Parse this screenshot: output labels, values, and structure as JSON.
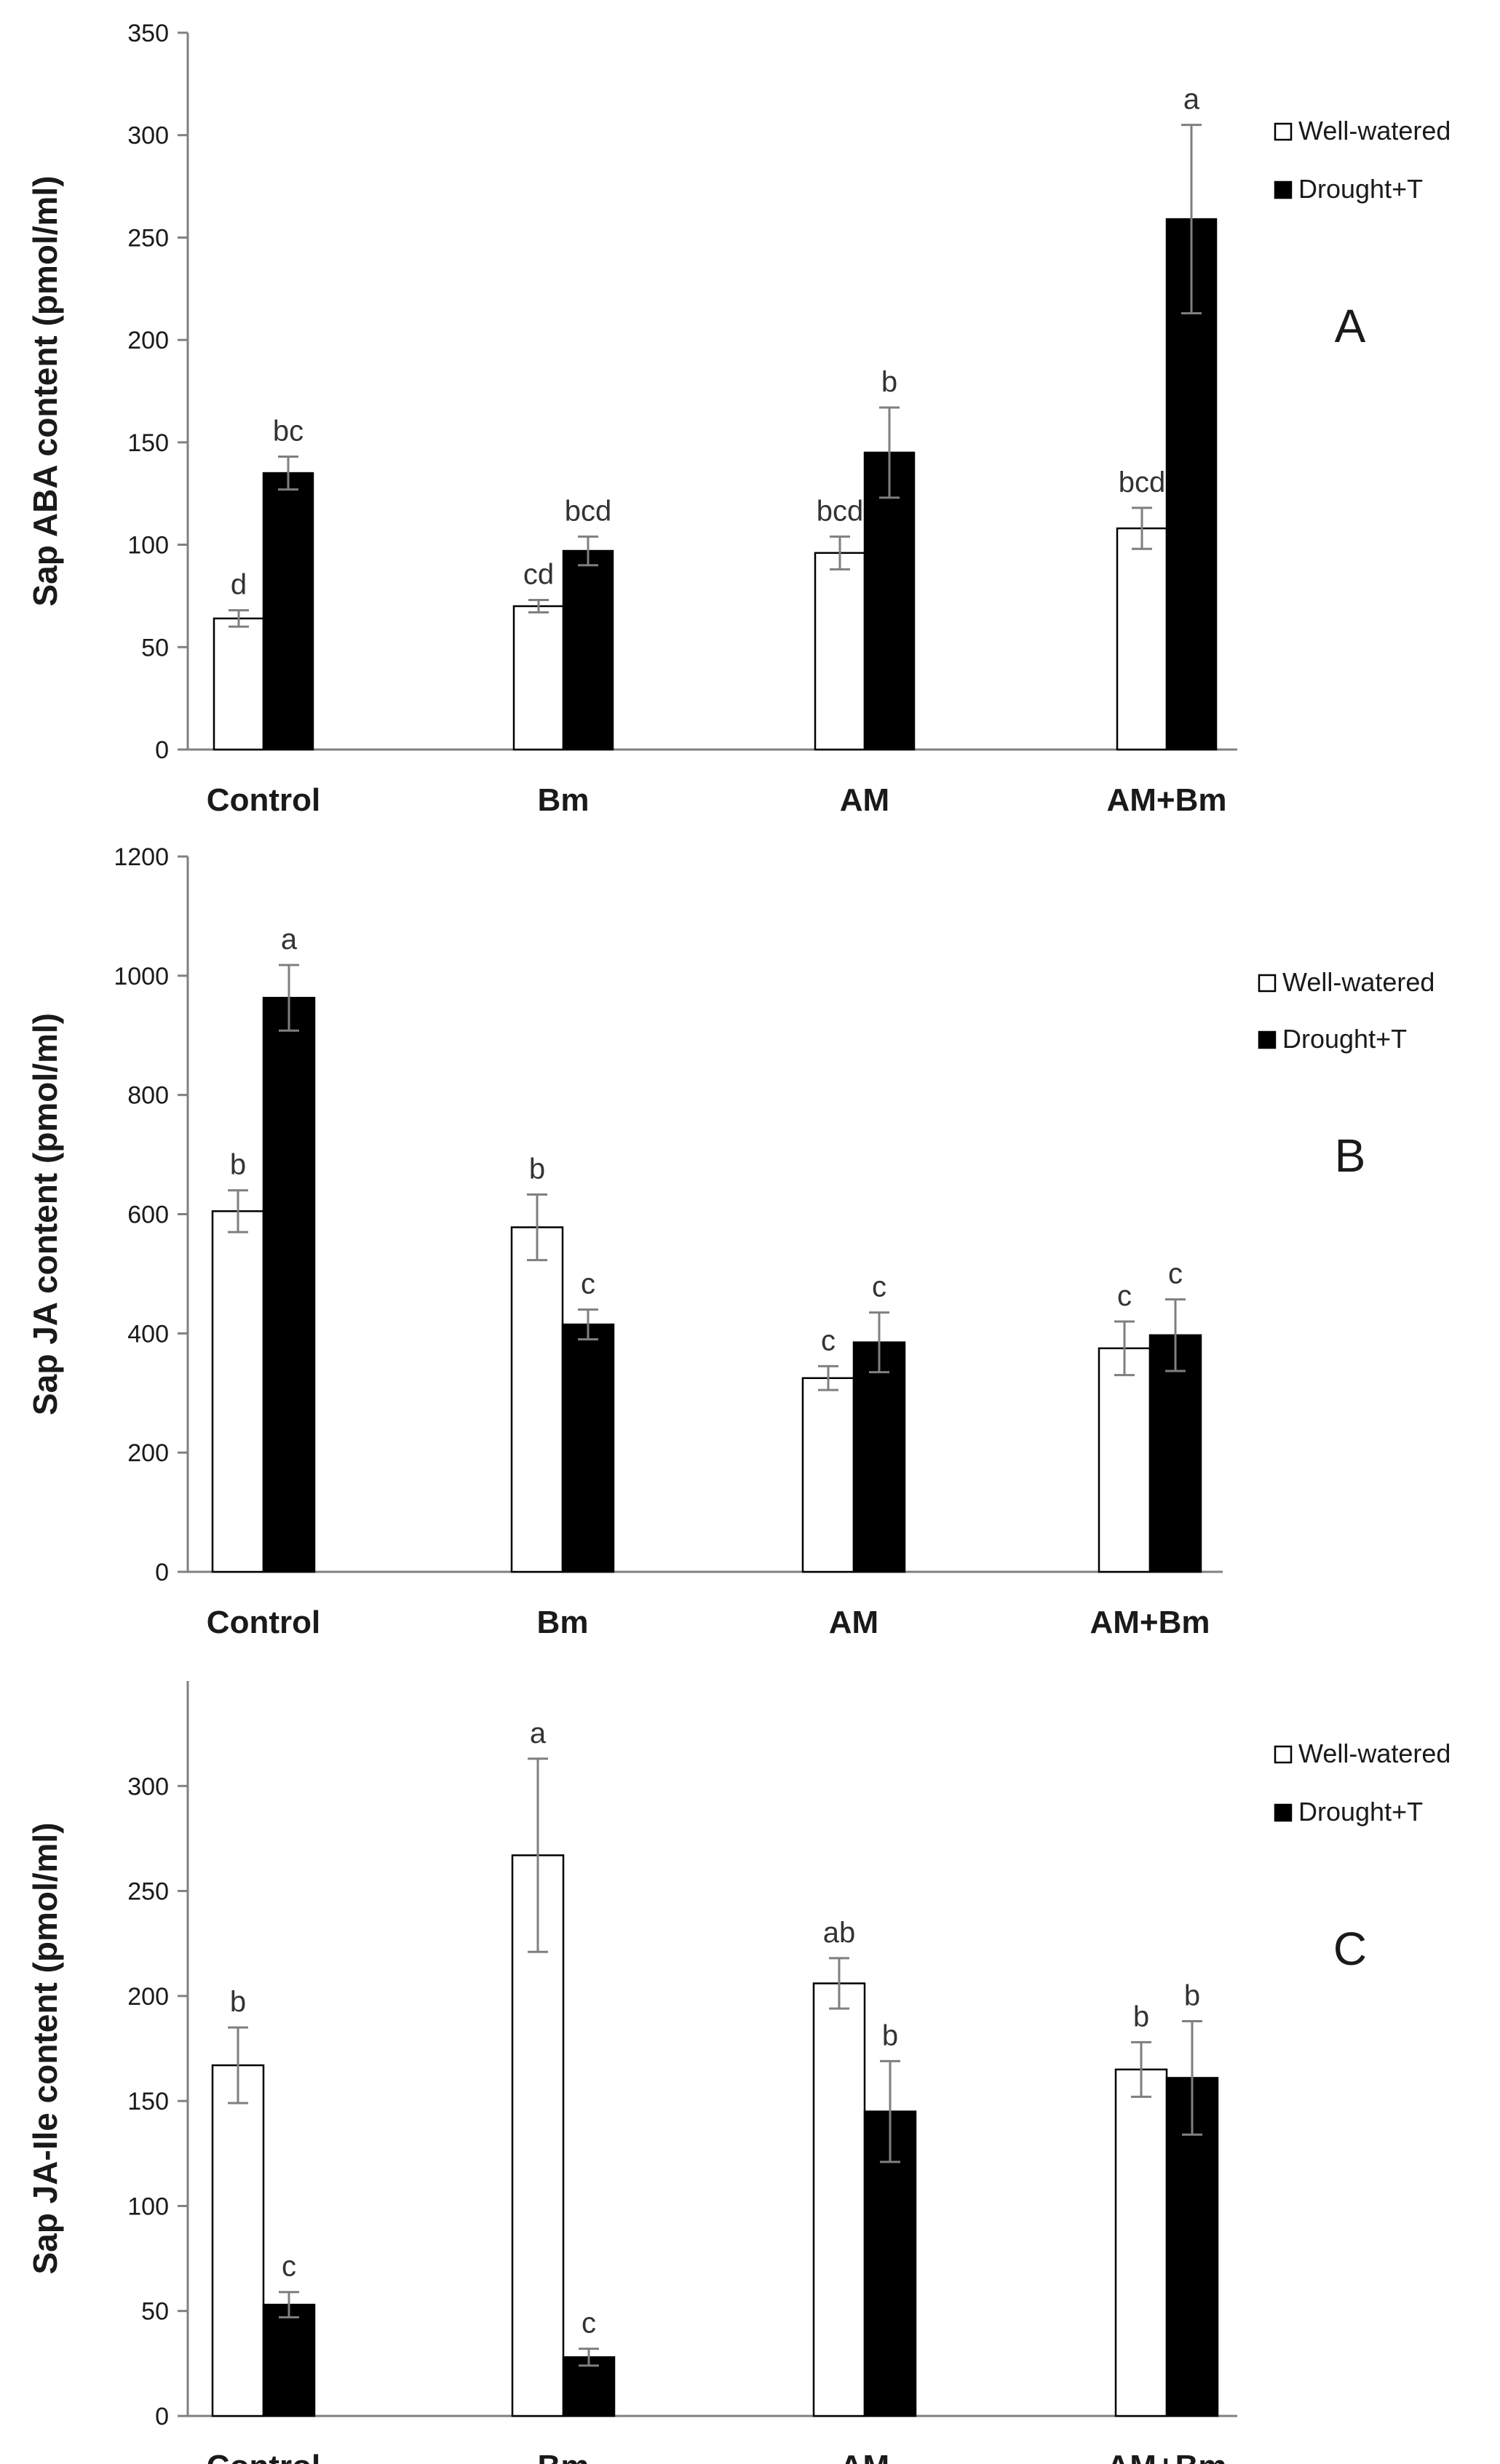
{
  "chart_data": [
    {
      "type": "bar",
      "panel_label": "A",
      "ylabel": "Sap ABA content (pmol/ml)",
      "categories": [
        "Control",
        "Bm",
        "AM",
        "AM+Bm"
      ],
      "ylim": [
        0,
        350
      ],
      "yticks": [
        "0",
        "50",
        "100",
        "150",
        "200",
        "250",
        "300",
        "350"
      ],
      "series": [
        {
          "name": "Well-watered",
          "color": "#ffffff",
          "values": [
            64,
            70,
            96,
            108
          ],
          "errors": [
            4,
            3,
            8,
            10
          ],
          "labels": [
            "d",
            "cd",
            "bcd",
            "bcd"
          ]
        },
        {
          "name": "Drought+T",
          "color": "#000000",
          "values": [
            135,
            97,
            145,
            259
          ],
          "errors": [
            8,
            7,
            22,
            46
          ],
          "labels": [
            "bc",
            "bcd",
            "b",
            "a"
          ]
        }
      ],
      "legend": [
        "Well-watered",
        "Drought+T"
      ]
    },
    {
      "type": "bar",
      "panel_label": "B",
      "ylabel": "Sap JA content (pmol/ml)",
      "categories": [
        "Control",
        "Bm",
        "AM",
        "AM+Bm"
      ],
      "ylim": [
        0,
        1200
      ],
      "yticks": [
        "0",
        "200",
        "400",
        "600",
        "800",
        "1000",
        "1200"
      ],
      "series": [
        {
          "name": "Well-watered",
          "color": "#ffffff",
          "values": [
            605,
            578,
            325,
            375
          ],
          "errors": [
            35,
            55,
            20,
            45
          ],
          "labels": [
            "b",
            "b",
            "c",
            "c"
          ]
        },
        {
          "name": "Drought+T",
          "color": "#000000",
          "values": [
            963,
            415,
            385,
            397
          ],
          "errors": [
            55,
            25,
            50,
            60
          ],
          "labels": [
            "a",
            "c",
            "c",
            "c"
          ]
        }
      ],
      "legend": [
        "Well-watered",
        "Drought+T"
      ]
    },
    {
      "type": "bar",
      "panel_label": "C",
      "ylabel": "Sap JA-Ile content (pmol/ml)",
      "categories": [
        "Control",
        "Bm",
        "AM",
        "AM+Bm"
      ],
      "ylim": [
        0,
        350
      ],
      "yticks": [
        "0",
        "50",
        "100",
        "150",
        "200",
        "250",
        "300"
      ],
      "series": [
        {
          "name": "Well-watered",
          "color": "#ffffff",
          "values": [
            167,
            267,
            206,
            165
          ],
          "errors": [
            18,
            46,
            12,
            13
          ],
          "labels": [
            "b",
            "a",
            "ab",
            "b"
          ]
        },
        {
          "name": "Drought+T",
          "color": "#000000",
          "values": [
            53,
            28,
            145,
            161
          ],
          "errors": [
            6,
            4,
            24,
            27
          ],
          "labels": [
            "c",
            "c",
            "b",
            "b"
          ]
        }
      ],
      "legend": [
        "Well-watered",
        "Drought+T"
      ]
    }
  ]
}
